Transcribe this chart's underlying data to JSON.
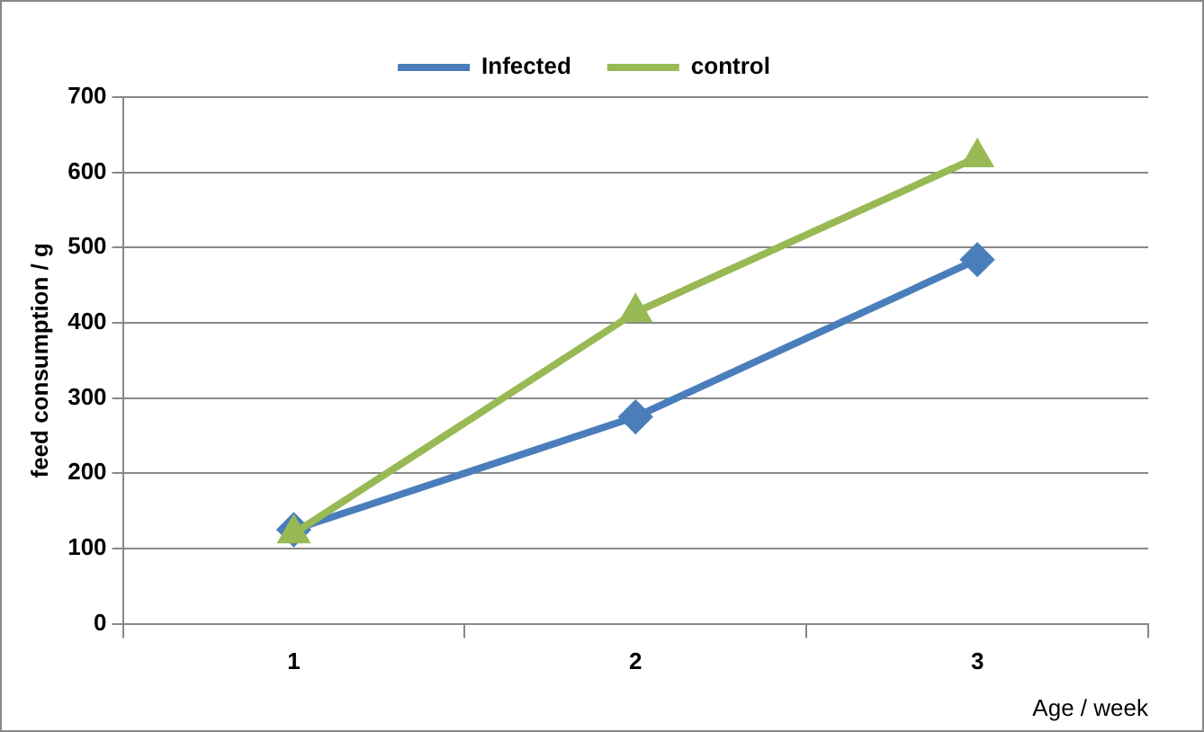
{
  "chart_data": {
    "type": "line",
    "xlabel": "Age / week",
    "ylabel": "feed consumption / g",
    "categories": [
      "1",
      "2",
      "3"
    ],
    "series": [
      {
        "name": "Infected",
        "color": "#4a7ebb",
        "values": [
          125,
          275,
          484
        ],
        "marker": "diamond"
      },
      {
        "name": "control",
        "color": "#98b954",
        "values": [
          120,
          414,
          620
        ],
        "marker": "triangle"
      }
    ],
    "ylim": [
      0,
      700
    ],
    "yticks": [
      0,
      100,
      200,
      300,
      400,
      500,
      600,
      700
    ],
    "grid": "y",
    "legend": "top"
  }
}
